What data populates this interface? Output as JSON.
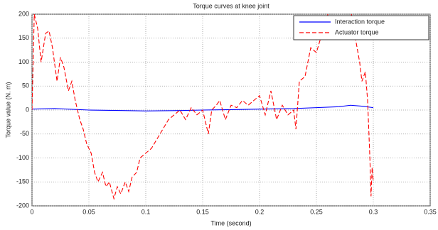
{
  "chart_data": {
    "type": "line",
    "title": "Torque curves at knee joint",
    "xlabel": "Time (second)",
    "ylabel": "Torque value (N. m)",
    "xlim": [
      0,
      0.35
    ],
    "xticks": [
      0,
      0.05,
      0.1,
      0.15,
      0.2,
      0.25,
      0.3,
      0.35
    ],
    "ylim": [
      -200,
      200
    ],
    "yticks": [
      -200,
      -150,
      -100,
      -50,
      0,
      50,
      100,
      150,
      200
    ],
    "grid": true,
    "legend": "upper right",
    "series": [
      {
        "name": "Interaction torque",
        "color": "#0000ff",
        "dash": false,
        "x": [
          0,
          0.02,
          0.05,
          0.08,
          0.1,
          0.13,
          0.15,
          0.18,
          0.2,
          0.23,
          0.25,
          0.27,
          0.28,
          0.29,
          0.3
        ],
        "values": [
          2,
          3,
          0,
          -1,
          -2,
          -1,
          0,
          1,
          2,
          3,
          5,
          7,
          10,
          8,
          5
        ]
      },
      {
        "name": "Actuator torque",
        "color": "#ff0000",
        "dash": true,
        "x": [
          0,
          0.002,
          0.005,
          0.008,
          0.012,
          0.015,
          0.018,
          0.022,
          0.025,
          0.028,
          0.032,
          0.035,
          0.038,
          0.042,
          0.045,
          0.048,
          0.052,
          0.055,
          0.058,
          0.062,
          0.065,
          0.068,
          0.072,
          0.075,
          0.078,
          0.082,
          0.085,
          0.088,
          0.092,
          0.095,
          0.1,
          0.105,
          0.11,
          0.115,
          0.12,
          0.125,
          0.13,
          0.135,
          0.14,
          0.145,
          0.15,
          0.155,
          0.158,
          0.162,
          0.165,
          0.17,
          0.175,
          0.18,
          0.185,
          0.19,
          0.195,
          0.2,
          0.205,
          0.21,
          0.215,
          0.22,
          0.225,
          0.23,
          0.232,
          0.235,
          0.24,
          0.245,
          0.25,
          0.255,
          0.258,
          0.26,
          0.27,
          0.28,
          0.285,
          0.288,
          0.29,
          0.293,
          0.295,
          0.297,
          0.298,
          0.299,
          0.3
        ],
        "values": [
          0,
          200,
          170,
          100,
          160,
          165,
          130,
          60,
          110,
          90,
          40,
          60,
          20,
          -20,
          -40,
          -70,
          -90,
          -130,
          -150,
          -130,
          -160,
          -150,
          -185,
          -160,
          -175,
          -150,
          -170,
          -140,
          -130,
          -100,
          -90,
          -80,
          -60,
          -40,
          -20,
          -10,
          0,
          -20,
          5,
          -10,
          0,
          -50,
          0,
          10,
          20,
          -20,
          10,
          5,
          20,
          10,
          20,
          30,
          -10,
          40,
          -20,
          10,
          -10,
          0,
          -40,
          60,
          70,
          130,
          120,
          160,
          150,
          200,
          220,
          210,
          140,
          100,
          60,
          80,
          20,
          -100,
          -180,
          -120,
          -150
        ]
      }
    ]
  }
}
